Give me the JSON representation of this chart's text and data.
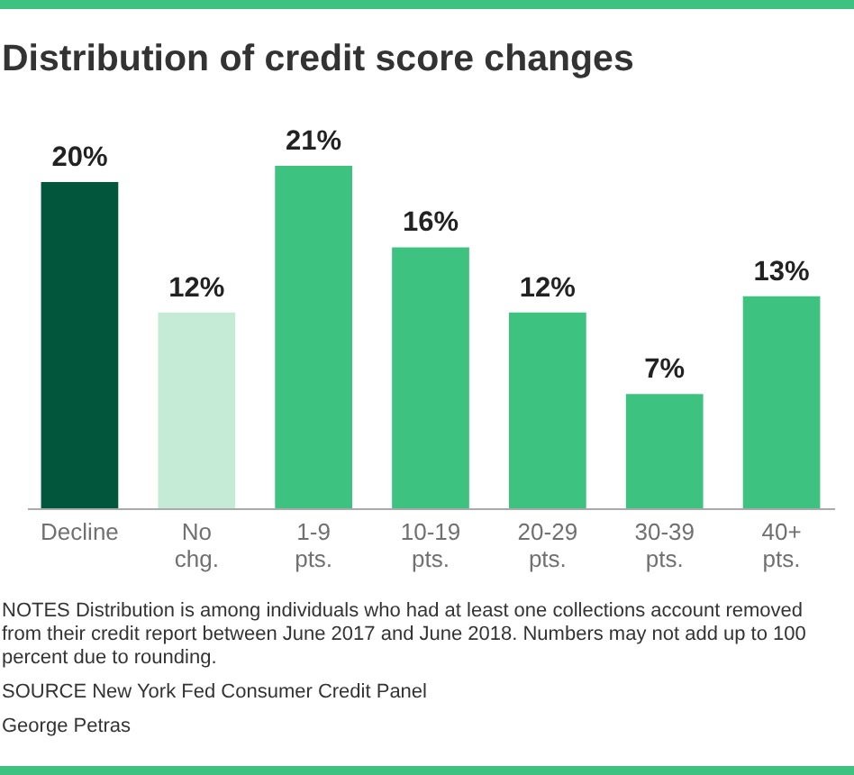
{
  "chart_data": {
    "type": "bar",
    "title": "Distribution of credit score changes",
    "categories": [
      "Decline",
      "No chg.",
      "1-9 pts.",
      "10-19 pts.",
      "20-29 pts.",
      "30-39 pts.",
      "40+ pts."
    ],
    "values": [
      20,
      12,
      21,
      16,
      12,
      7,
      13
    ],
    "colors": [
      "#02563b",
      "#c5ebd6",
      "#3ec280",
      "#3ec280",
      "#3ec280",
      "#3ec280",
      "#3ec280"
    ],
    "value_labels": [
      "20%",
      "12%",
      "21%",
      "16%",
      "12%",
      "7%",
      "13%"
    ],
    "tick_labels": "x",
    "annotations": [
      "NOTES Distribution is among individuals who had at least one collections account removed from their credit report between June 2017 and June 2018. Numbers may not add up to 100 percent due to rounding.",
      "SOURCE New York Fed Consumer Credit Panel",
      "George Petras"
    ]
  }
}
